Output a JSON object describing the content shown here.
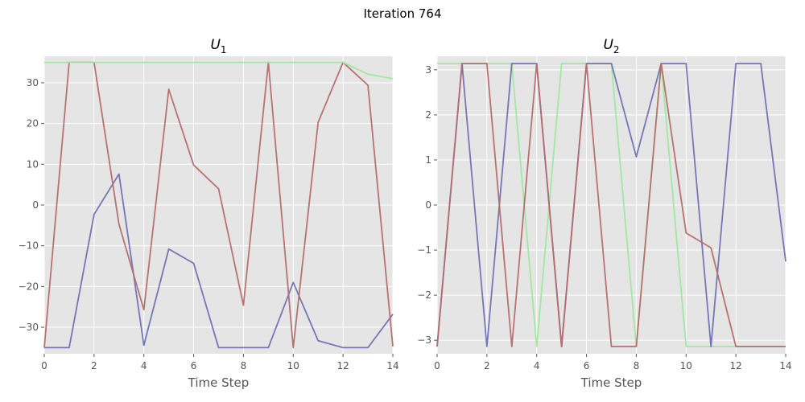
{
  "figure": {
    "suptitle": "Iteration 764"
  },
  "chart_data": [
    {
      "type": "line",
      "title": "U",
      "title_subscript": "1",
      "xlabel": "Time Step",
      "ylabel": "",
      "xlim": [
        0,
        14
      ],
      "ylim": [
        -36.5,
        36.5
      ],
      "xticks": [
        0,
        2,
        4,
        6,
        8,
        10,
        12,
        14
      ],
      "yticks": [
        -30,
        -20,
        -10,
        0,
        10,
        20,
        30
      ],
      "grid": true,
      "x": [
        0,
        1,
        2,
        3,
        4,
        5,
        6,
        7,
        8,
        9,
        10,
        11,
        12,
        13,
        14
      ],
      "series": [
        {
          "color": "#7070b4",
          "values": [
            -35,
            -35,
            -2.3,
            7.6,
            -34.4,
            -10.8,
            -14.3,
            -35,
            -35,
            -35,
            -19,
            -33.3,
            -35,
            -35,
            -26.8
          ]
        },
        {
          "color": "#b46c6c",
          "values": [
            -35,
            35,
            35,
            -4.7,
            -25.7,
            28.4,
            9.8,
            4,
            -24.6,
            35,
            -35,
            20.3,
            35,
            29.4,
            -34.7
          ]
        },
        {
          "color": "#9ee89e",
          "values": [
            35,
            35,
            35,
            35,
            35,
            35,
            35,
            35,
            35,
            35,
            35,
            35,
            35,
            32.1,
            31
          ]
        }
      ]
    },
    {
      "type": "line",
      "title": "U",
      "title_subscript": "2",
      "xlabel": "Time Step",
      "ylabel": "",
      "xlim": [
        0,
        14
      ],
      "ylim": [
        -3.3,
        3.3
      ],
      "xticks": [
        0,
        2,
        4,
        6,
        8,
        10,
        12,
        14
      ],
      "yticks": [
        -3,
        -2,
        -1,
        0,
        1,
        2,
        3
      ],
      "grid": true,
      "x": [
        0,
        1,
        2,
        3,
        4,
        5,
        6,
        7,
        8,
        9,
        10,
        11,
        12,
        13,
        14
      ],
      "series": [
        {
          "color": "#9ee89e",
          "values": [
            3.14,
            3.14,
            3.14,
            3.14,
            -3.14,
            3.14,
            3.14,
            3.14,
            -3.14,
            3.14,
            -3.14,
            -3.14,
            -3.14,
            -3.14,
            -3.14
          ]
        },
        {
          "color": "#7070b4",
          "values": [
            -3.14,
            3.14,
            -3.14,
            3.14,
            3.14,
            -3.14,
            3.14,
            3.14,
            1.07,
            3.14,
            3.14,
            -3.14,
            3.14,
            3.14,
            -1.25
          ]
        },
        {
          "color": "#b46c6c",
          "values": [
            -3.14,
            3.14,
            3.14,
            -3.14,
            3.14,
            -3.14,
            3.14,
            -3.14,
            -3.14,
            3.14,
            -0.62,
            -0.95,
            -3.14,
            -3.14,
            -3.14
          ]
        }
      ]
    }
  ]
}
